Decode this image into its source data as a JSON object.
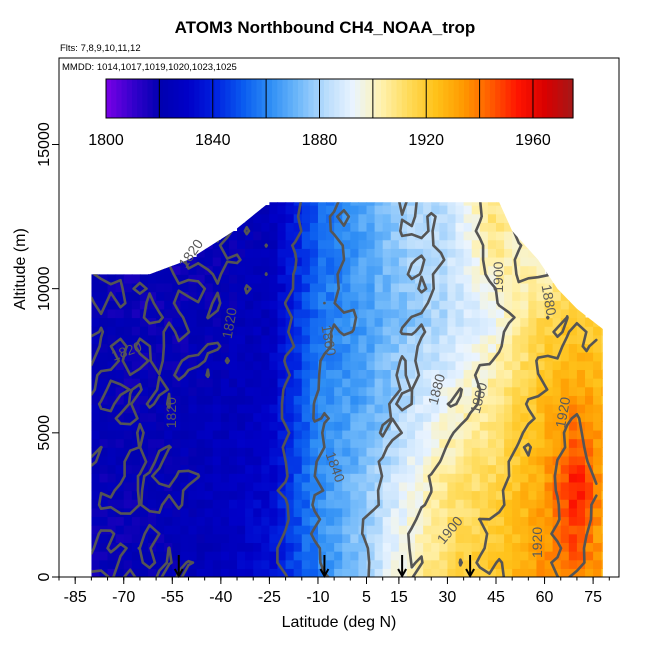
{
  "chart_data": {
    "type": "heatmap",
    "title": "ATOM3 Northbound CH4_NOAA_trop",
    "flights_line": "Flts: 7,8,9,10,11,12",
    "dates_line": "MMDD: 1014,1017,1019,1020,1023,1025",
    "xlabel": "Latitude (deg N)",
    "ylabel": "Altitude (m)",
    "xlim": [
      -90,
      83
    ],
    "ylim": [
      0,
      18000
    ],
    "x_ticks": [
      -85,
      -70,
      -55,
      -40,
      -25,
      -10,
      5,
      15,
      30,
      45,
      60,
      75
    ],
    "y_ticks": [
      0,
      5000,
      10000,
      15000
    ],
    "colorbar": {
      "min": 1800,
      "max": 1975,
      "ticks": [
        1800,
        1840,
        1880,
        1920,
        1960
      ],
      "colors": [
        "#7a00e6",
        "#3300cc",
        "#0000b0",
        "#0000c8",
        "#0022e0",
        "#0a5cf0",
        "#2f8ff5",
        "#6fb8fa",
        "#b8dcfc",
        "#eaf4ff",
        "#fff2b0",
        "#ffdb5a",
        "#ffc21a",
        "#ff9a00",
        "#ff5c00",
        "#ff1400",
        "#d80000",
        "#a51818"
      ]
    },
    "field_sections": [
      {
        "lat": -85,
        "values": [
          1821,
          1822,
          1823,
          1822,
          1820
        ]
      },
      {
        "lat": -70,
        "values": [
          1820,
          1821,
          1821,
          1820,
          1816
        ]
      },
      {
        "lat": -55,
        "values": [
          1822,
          1822,
          1823,
          1820,
          1818
        ]
      },
      {
        "lat": -40,
        "values": [
          1825,
          1826,
          1824,
          1822,
          1820
        ]
      },
      {
        "lat": -25,
        "values": [
          1835,
          1832,
          1828,
          1826,
          1824
        ]
      },
      {
        "lat": -10,
        "values": [
          1858,
          1862,
          1860,
          1856,
          1852
        ]
      },
      {
        "lat": 5,
        "values": [
          1880,
          1876,
          1868,
          1866,
          1868
        ]
      },
      {
        "lat": 15,
        "values": [
          1896,
          1890,
          1880,
          1874,
          1878
        ]
      },
      {
        "lat": 30,
        "values": [
          1915,
          1908,
          1896,
          1882,
          1885
        ]
      },
      {
        "lat": 45,
        "values": [
          1922,
          1916,
          1908,
          1895,
          1910
        ]
      },
      {
        "lat": 60,
        "values": [
          1935,
          1932,
          1925,
          1915,
          1890
        ]
      },
      {
        "lat": 70,
        "values": [
          1940,
          1958,
          1935,
          1920,
          1900
        ]
      },
      {
        "lat": 78,
        "values": [
          1930,
          1932,
          1928,
          1915,
          1895
        ]
      }
    ],
    "field_altitudes": [
      0,
      3000,
      6000,
      9000,
      12000
    ],
    "coverage": [
      {
        "lat": -80,
        "top": 10500
      },
      {
        "lat": -62,
        "top": 10500
      },
      {
        "lat": -50,
        "top": 11000
      },
      {
        "lat": -36,
        "top": 12000
      },
      {
        "lat": -25,
        "top": 13000
      },
      {
        "lat": -11,
        "top": 13000
      },
      {
        "lat": 30,
        "top": 13000
      },
      {
        "lat": 46,
        "top": 13000
      },
      {
        "lat": 50,
        "top": 12000
      },
      {
        "lat": 58,
        "top": 11000
      },
      {
        "lat": 64,
        "top": 10000
      },
      {
        "lat": 70,
        "top": 9300
      },
      {
        "lat": 78,
        "top": 8600
      }
    ],
    "contour_labels": [
      {
        "text": "1820",
        "lat": -69,
        "alt": 7800,
        "angle": -20
      },
      {
        "text": "1820",
        "lat": -55,
        "alt": 5700,
        "angle": -90
      },
      {
        "text": "1820",
        "lat": -37,
        "alt": 8800,
        "angle": -80
      },
      {
        "text": "1820",
        "lat": -49,
        "alt": 11200,
        "angle": -55
      },
      {
        "text": "1840",
        "lat": -5,
        "alt": 3800,
        "angle": 70
      },
      {
        "text": "1860",
        "lat": -7,
        "alt": 8200,
        "angle": 80
      },
      {
        "text": "1880",
        "lat": 27,
        "alt": 6500,
        "angle": -75
      },
      {
        "text": "1880",
        "lat": 40,
        "alt": 6200,
        "angle": -75
      },
      {
        "text": "1880",
        "lat": 61,
        "alt": 9600,
        "angle": 80
      },
      {
        "text": "1900",
        "lat": 31,
        "alt": 1600,
        "angle": -50
      },
      {
        "text": "1900",
        "lat": 46,
        "alt": 10400,
        "angle": -90
      },
      {
        "text": "1920",
        "lat": 66,
        "alt": 5700,
        "angle": -80
      },
      {
        "text": "1920",
        "lat": 58,
        "alt": 1200,
        "angle": -90
      }
    ],
    "arrow_latitudes": [
      -53,
      -8,
      16,
      37
    ],
    "grid": false
  }
}
